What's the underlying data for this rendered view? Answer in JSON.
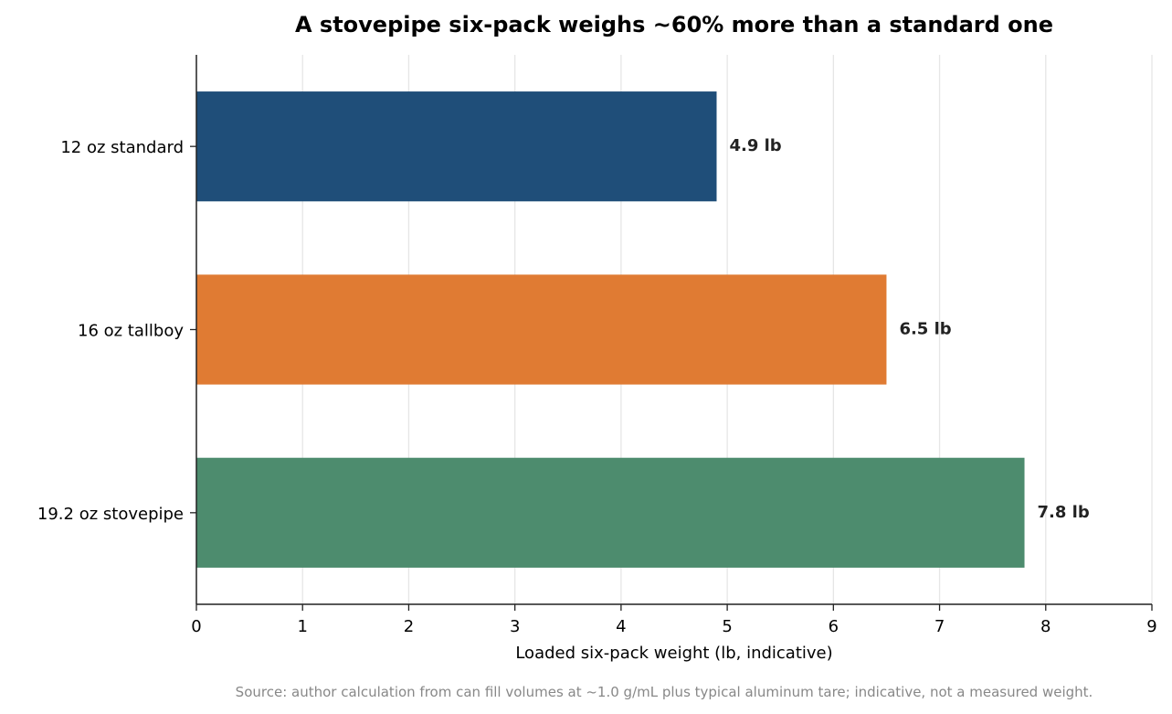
{
  "chart_data": {
    "type": "bar",
    "orientation": "horizontal",
    "title": "A stovepipe six-pack weighs ~60% more than a standard one",
    "xlabel": "Loaded six-pack weight (lb, indicative)",
    "ylabel": "",
    "categories": [
      "12 oz standard",
      "16 oz tallboy",
      "19.2 oz stovepipe"
    ],
    "values": [
      4.9,
      6.5,
      7.8
    ],
    "value_labels": [
      "4.9 lb",
      "6.5 lb",
      "7.8 lb"
    ],
    "colors": [
      "#1f4e79",
      "#e07b33",
      "#4d8c6e"
    ],
    "xlim": [
      0,
      9
    ],
    "xticks": [
      "0",
      "1",
      "2",
      "3",
      "4",
      "5",
      "6",
      "7",
      "8",
      "9"
    ],
    "grid": "vertical",
    "legend": "none",
    "source": "Source: author calculation from can fill volumes at ~1.0 g/mL plus typical aluminum tare; indicative, not a measured weight."
  }
}
